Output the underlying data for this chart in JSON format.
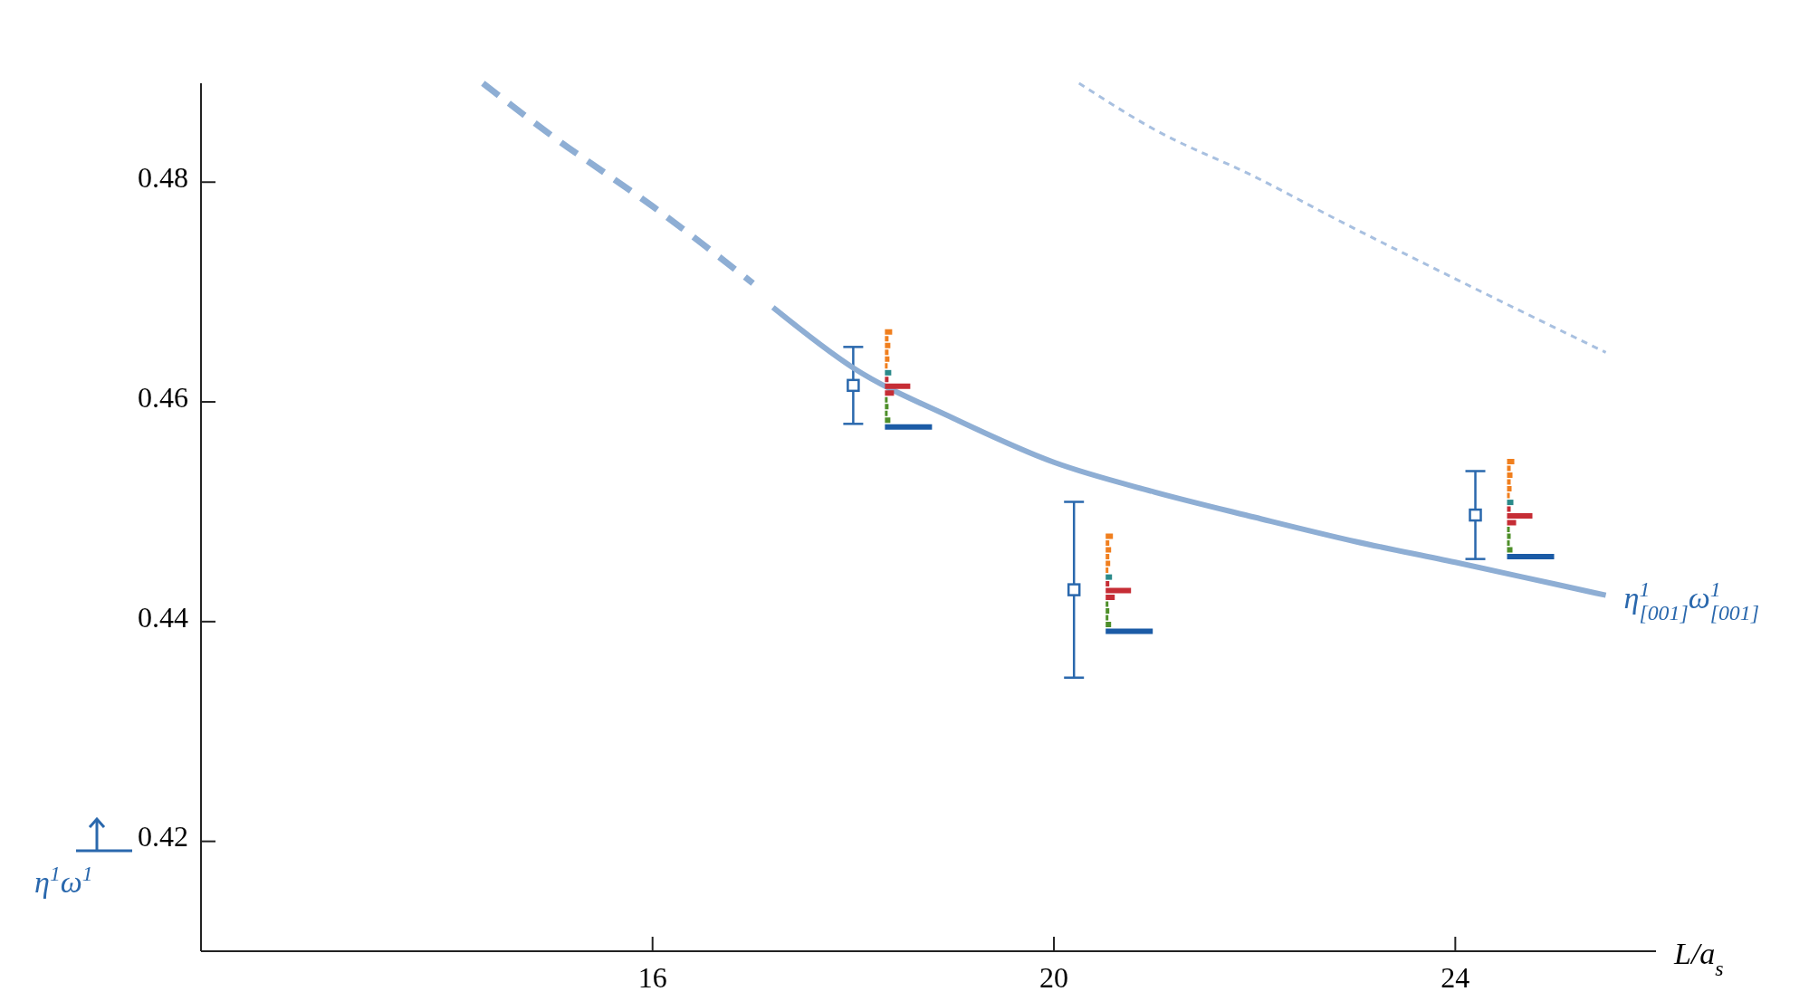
{
  "chart_data": {
    "type": "scatter",
    "xlabel": "L/a$_{s}$",
    "xlim": [
      11.5,
      26
    ],
    "xticks": [
      16,
      20,
      24
    ],
    "ylim": [
      0.41,
      0.489
    ],
    "yticks": [
      0.42,
      0.44,
      0.46,
      0.48
    ],
    "series": [
      {
        "color": "#2a68ad",
        "marker": "square",
        "x": [
          18.0,
          20.2,
          24.2
        ],
        "values": [
          0.4615,
          0.4429,
          0.4497
        ],
        "errors": [
          0.0035,
          0.008,
          0.004
        ]
      },
      {
        "type": "line",
        "color": "#8eaed4",
        "line_style": "dashed",
        "x": [
          14.31,
          15,
          16,
          17
        ],
        "values": [
          0.489,
          0.4842,
          0.4778,
          0.4708
        ]
      },
      {
        "type": "line",
        "name": "η$^{1}$$_{[001]}$ω$^{1}$$_{[001]}$",
        "color": "#8eaed4",
        "line_style": "solid",
        "x": [
          17.2,
          18,
          19,
          20,
          21,
          22,
          23,
          24,
          25,
          25.5
        ],
        "values": [
          0.4686,
          0.4631,
          0.4585,
          0.4545,
          0.4518,
          0.4495,
          0.4473,
          0.4454,
          0.4434,
          0.4424
        ]
      },
      {
        "type": "line",
        "color": "#a8c0e0",
        "line_style": "dotted",
        "x": [
          20.25,
          21,
          22,
          22.84,
          24,
          25.5
        ],
        "values": [
          0.489,
          0.4848,
          0.4805,
          0.4765,
          0.4712,
          0.4645
        ]
      }
    ],
    "annotations": [
      "η$^{1}$ω$^{1}$"
    ]
  }
}
